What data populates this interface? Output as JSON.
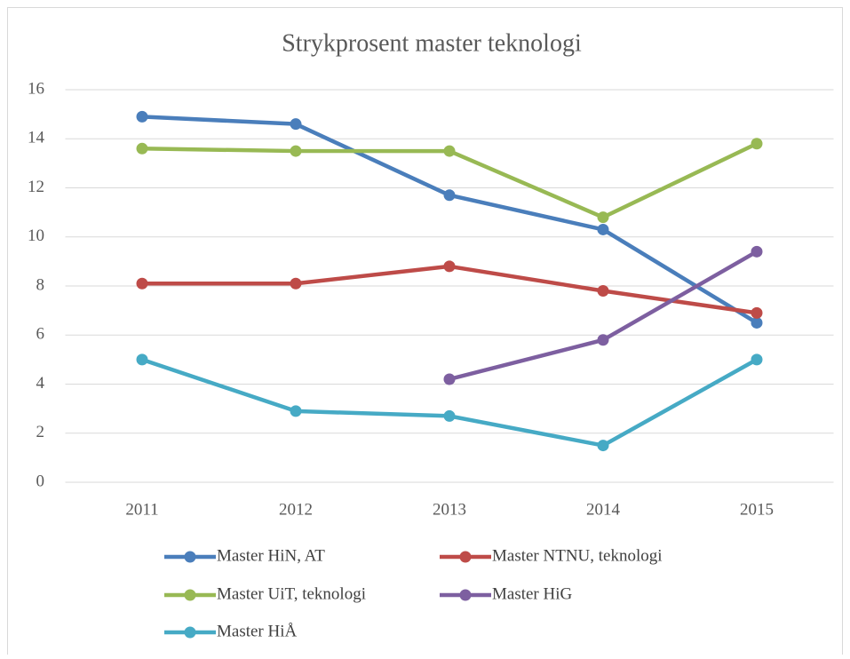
{
  "chart_data": {
    "type": "line",
    "title": "Strykprosent master teknologi",
    "categories": [
      "2011",
      "2012",
      "2013",
      "2014",
      "2015"
    ],
    "series": [
      {
        "name": "Master HiN, AT",
        "color": "#4a7ebb",
        "values": [
          14.9,
          14.6,
          11.7,
          10.3,
          6.5
        ]
      },
      {
        "name": "Master NTNU, teknologi",
        "color": "#be4b48",
        "values": [
          8.1,
          8.1,
          8.8,
          7.8,
          6.9
        ]
      },
      {
        "name": "Master UiT, teknologi",
        "color": "#98b954",
        "values": [
          13.6,
          13.5,
          13.5,
          10.8,
          13.8
        ]
      },
      {
        "name": "Master HiG",
        "color": "#7d5fa0",
        "values": [
          null,
          null,
          4.2,
          5.8,
          9.4
        ]
      },
      {
        "name": "Master HiÅ",
        "color": "#46aac5",
        "values": [
          5.0,
          2.9,
          2.7,
          1.5,
          5.0
        ]
      }
    ],
    "ylim": [
      0,
      16
    ],
    "yticks": [
      0,
      2,
      4,
      6,
      8,
      10,
      12,
      14,
      16
    ],
    "grid": true,
    "legend": "bottom"
  }
}
